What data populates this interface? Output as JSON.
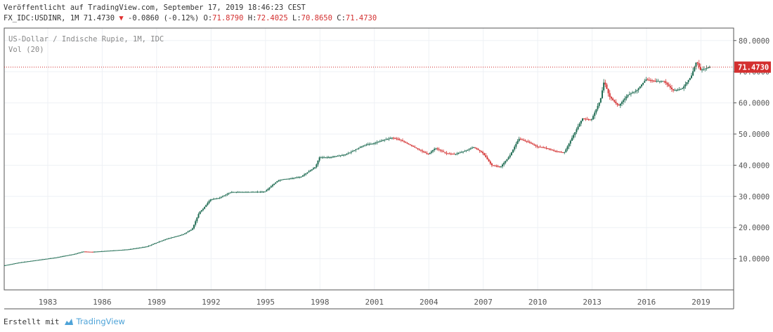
{
  "header": {
    "published": "Veröffentlicht auf TradingView.com, September 17, 2019 18:46:23 CEST",
    "symbol": "FX_IDC:USDINR, 1M 71.4730",
    "change_arrow": "▼",
    "change": "-0.0860 (-0.12%)",
    "ohlc_o_label": "O:",
    "ohlc_o": "71.8790",
    "ohlc_h_label": "H:",
    "ohlc_h": "72.4025",
    "ohlc_l_label": "L:",
    "ohlc_l": "70.8650",
    "ohlc_c_label": "C:",
    "ohlc_c": "71.4730"
  },
  "legend": {
    "instrument": "US-Dollar / Indische Rupie, 1M, IDC",
    "volume": "Vol (20)"
  },
  "footer": {
    "created_with": "Erstellt mit",
    "brand": "TradingView"
  },
  "colors": {
    "up": "#1e6b52",
    "down": "#d32f2f",
    "price_line": "#d32f2f",
    "grid": "#eef1f5",
    "axis": "#555555"
  },
  "chart_data": {
    "type": "line",
    "title": "US-Dollar / Indische Rupie, 1M, IDC",
    "xlabel": "",
    "ylabel": "",
    "xlim": [
      1980.6,
      2020.8
    ],
    "ylim": [
      0,
      84
    ],
    "x_ticks": [
      "1983",
      "1986",
      "1989",
      "1992",
      "1995",
      "1998",
      "2001",
      "2004",
      "2007",
      "2010",
      "2013",
      "2016",
      "2019"
    ],
    "y_ticks": [
      "10.0000",
      "20.0000",
      "30.0000",
      "40.0000",
      "50.0000",
      "60.0000",
      "70.0000",
      "80.0000"
    ],
    "last_price": 71.473,
    "last_price_label": "71.4730",
    "grid": true,
    "series": [
      {
        "x": [
          1980.6,
          1981.5,
          1982.5,
          1983.5,
          1984.5,
          1985.0,
          1985.5,
          1986.5,
          1987.5,
          1988.5,
          1989.5,
          1990.5,
          1991.0,
          1991.4,
          1991.6,
          1992.0,
          1992.5,
          1993.0,
          1993.2,
          1994.0,
          1995.0,
          1995.7,
          1996.0,
          1996.5,
          1997.0,
          1997.8,
          1998.0,
          1998.5,
          1999.0,
          1999.5,
          2000.0,
          2000.5,
          2001.0,
          2001.5,
          2002.0,
          2002.4,
          2003.0,
          2003.5,
          2004.0,
          2004.4,
          2005.0,
          2005.5,
          2006.0,
          2006.5,
          2007.0,
          2007.5,
          2008.0,
          2008.5,
          2009.0,
          2009.5,
          2010.0,
          2010.5,
          2011.0,
          2011.5,
          2012.0,
          2012.5,
          2013.0,
          2013.5,
          2013.7,
          2014.0,
          2014.5,
          2015.0,
          2015.5,
          2016.0,
          2016.5,
          2017.0,
          2017.5,
          2018.0,
          2018.5,
          2018.8,
          2019.0,
          2019.5
        ],
        "values": [
          7.8,
          8.8,
          9.6,
          10.4,
          11.5,
          12.3,
          12.2,
          12.6,
          13.0,
          13.9,
          16.2,
          17.8,
          19.5,
          25.0,
          26.0,
          29.0,
          29.5,
          31.0,
          31.4,
          31.4,
          31.5,
          35.0,
          35.5,
          35.8,
          36.3,
          39.5,
          42.5,
          42.5,
          43.0,
          43.5,
          45.0,
          46.5,
          47.0,
          48.0,
          48.8,
          48.3,
          46.5,
          45.0,
          43.5,
          45.5,
          43.8,
          43.6,
          44.5,
          45.8,
          44.0,
          40.0,
          39.5,
          43.0,
          48.5,
          47.5,
          46.0,
          45.5,
          44.5,
          44.0,
          49.5,
          55.0,
          54.5,
          61.0,
          67.0,
          62.0,
          59.0,
          62.5,
          64.0,
          67.5,
          67.0,
          67.0,
          64.0,
          64.5,
          68.5,
          73.5,
          70.5,
          71.5
        ]
      }
    ]
  }
}
